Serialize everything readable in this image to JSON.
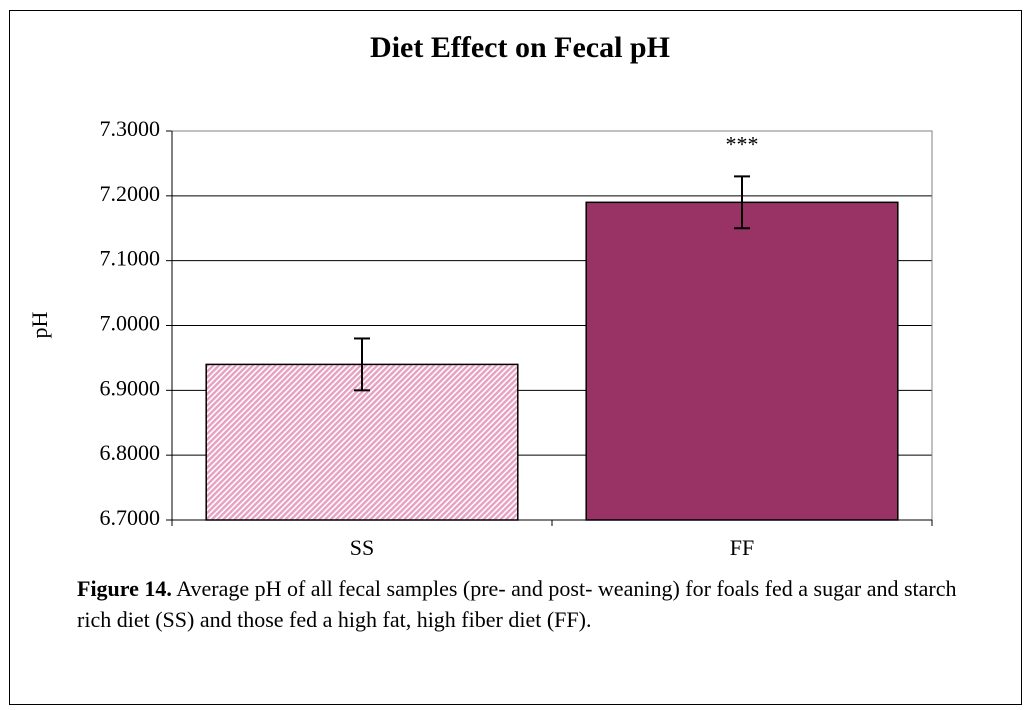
{
  "chart_data": {
    "type": "bar",
    "title": "Diet Effect on Fecal pH",
    "y_label": "pH",
    "categories": [
      "SS",
      "FF"
    ],
    "values": [
      6.94,
      7.19
    ],
    "errors": [
      0.04,
      0.04
    ],
    "colors": [
      "#e8a0c2",
      "#993366"
    ],
    "hatch": [
      true,
      false
    ],
    "ylim": [
      6.7,
      7.3
    ],
    "yticks": [
      {
        "value": 6.7,
        "label": "6.7000"
      },
      {
        "value": 6.8,
        "label": "6.8000"
      },
      {
        "value": 6.9,
        "label": "6.9000"
      },
      {
        "value": 7.0,
        "label": "7.0000"
      },
      {
        "value": 7.1,
        "label": "7.1000"
      },
      {
        "value": 7.2,
        "label": "7.2000"
      },
      {
        "value": 7.3,
        "label": "7.3000"
      }
    ],
    "grid": true,
    "annotations": [
      {
        "text": "***",
        "category": "FF"
      }
    ]
  },
  "caption": {
    "label": "Figure 14.",
    "text": "Average pH of all fecal samples (pre- and post- weaning) for foals fed a sugar and starch rich diet (SS) and those fed a high fat, high fiber diet (FF)."
  }
}
